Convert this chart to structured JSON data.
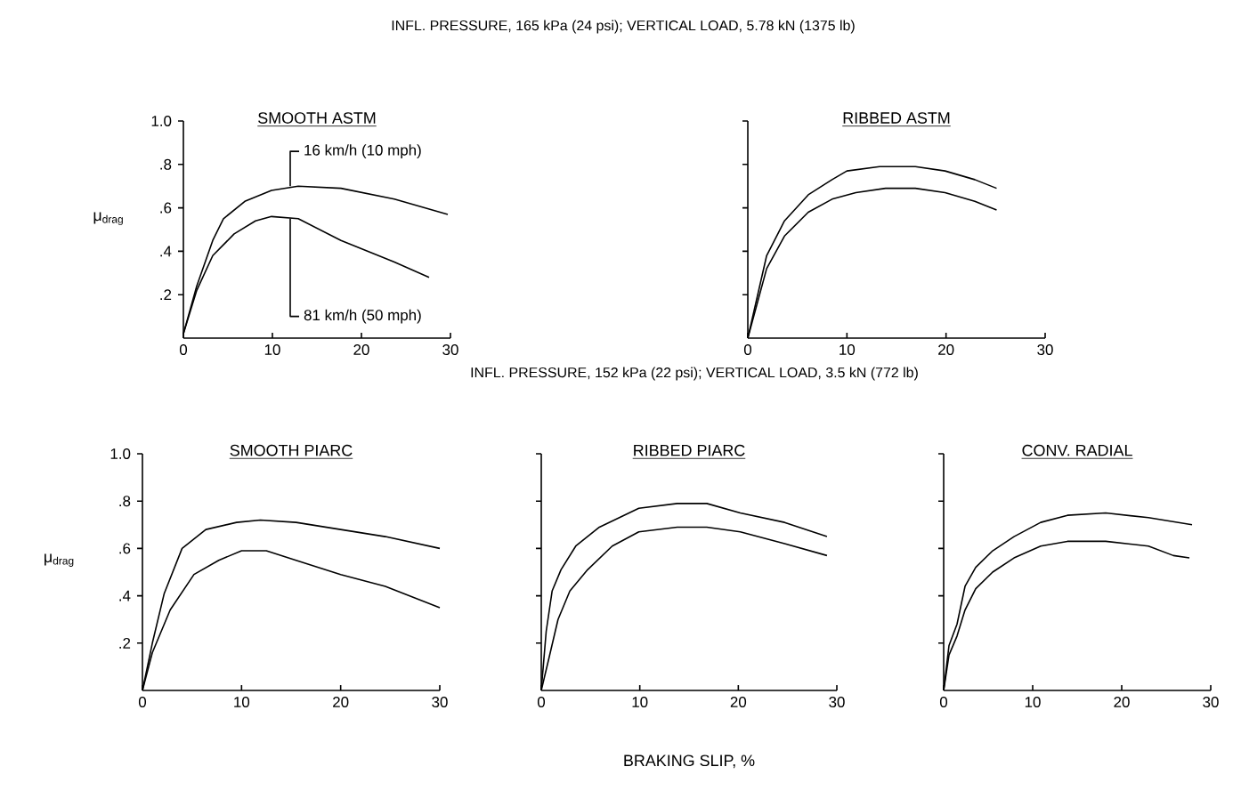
{
  "chart_data": [
    {
      "type": "line",
      "subtitle": "INFL. PRESSURE, 165 kPa (24 psi); VERTICAL LOAD, 5.78 kN (1375 lb)",
      "title": "SMOOTH ASTM",
      "ylabel": "μ$_{drag}$",
      "xlim": [
        0,
        30
      ],
      "ylim": [
        0,
        1.0
      ],
      "xticks": [
        0,
        10,
        20,
        30
      ],
      "yticks": [
        {
          "value": 0.2,
          "label": ".2"
        },
        {
          "value": 0.4,
          "label": ".4"
        },
        {
          "value": 0.6,
          "label": ".6"
        },
        {
          "value": 0.8,
          "label": ".8"
        },
        {
          "value": 1.0,
          "label": "1.0"
        }
      ],
      "series": [
        {
          "name": "16 km/h (10 mph)",
          "color": "#000000",
          "x": [
            0,
            1.5,
            3.3,
            4.5,
            6.9,
            9.9,
            12.9,
            17.7,
            23.7,
            29.7
          ],
          "values": [
            0.02,
            0.24,
            0.45,
            0.55,
            0.63,
            0.68,
            0.7,
            0.69,
            0.64,
            0.57
          ]
        },
        {
          "name": "81 km/h (50 mph)",
          "color": "#000000",
          "x": [
            0,
            1.5,
            3.3,
            5.7,
            8.1,
            9.9,
            12.9,
            17.7,
            23.7,
            27.6
          ],
          "values": [
            0.02,
            0.22,
            0.38,
            0.48,
            0.54,
            0.56,
            0.55,
            0.45,
            0.35,
            0.28
          ]
        }
      ]
    },
    {
      "type": "line",
      "title": "RIBBED ASTM",
      "xlim": [
        0,
        30
      ],
      "ylim": [
        0,
        1.0
      ],
      "xticks": [
        0,
        10,
        20,
        30
      ],
      "yticks": [
        {
          "value": 0.2,
          "label": null
        },
        {
          "value": 0.4,
          "label": null
        },
        {
          "value": 0.6,
          "label": null
        },
        {
          "value": 0.8,
          "label": null
        },
        {
          "value": 1.0,
          "label": null
        }
      ],
      "tick_labels": "x",
      "series": [
        {
          "color": "#000000",
          "x": [
            0,
            1.9,
            3.7,
            6.1,
            8.5,
            10,
            13.3,
            16.9,
            19.9,
            22.9,
            25.1
          ],
          "values": [
            0,
            0.38,
            0.54,
            0.66,
            0.73,
            0.77,
            0.79,
            0.79,
            0.77,
            0.73,
            0.69
          ]
        },
        {
          "color": "#000000",
          "x": [
            0,
            1.9,
            3.7,
            6.1,
            8.5,
            10.9,
            13.9,
            16.9,
            19.9,
            22.9,
            25.1
          ],
          "values": [
            0,
            0.32,
            0.47,
            0.58,
            0.64,
            0.67,
            0.69,
            0.69,
            0.67,
            0.63,
            0.59
          ]
        }
      ]
    },
    {
      "type": "line",
      "title": "SMOOTH PIARC",
      "ylabel": "μ$_{drag}$",
      "xlim": [
        0,
        30
      ],
      "ylim": [
        0,
        1.0
      ],
      "xticks": [
        0,
        10,
        20,
        30
      ],
      "yticks": [
        {
          "value": 0.2,
          "label": ".2"
        },
        {
          "value": 0.4,
          "label": ".4"
        },
        {
          "value": 0.6,
          "label": ".6"
        },
        {
          "value": 0.8,
          "label": ".8"
        },
        {
          "value": 1.0,
          "label": "1.0"
        }
      ],
      "series": [
        {
          "color": "#000000",
          "x": [
            0,
            1.0,
            2.2,
            4.0,
            6.4,
            9.5,
            11.9,
            15.5,
            20,
            24.5,
            30
          ],
          "values": [
            0,
            0.2,
            0.41,
            0.6,
            0.68,
            0.71,
            0.72,
            0.71,
            0.68,
            0.65,
            0.6
          ]
        },
        {
          "color": "#000000",
          "x": [
            0,
            1.0,
            2.8,
            5.2,
            7.7,
            10,
            12.5,
            15.5,
            20,
            24.5,
            30
          ],
          "values": [
            0,
            0.16,
            0.34,
            0.49,
            0.55,
            0.59,
            0.59,
            0.55,
            0.49,
            0.44,
            0.35
          ]
        }
      ]
    },
    {
      "type": "line",
      "subtitle": "INFL. PRESSURE, 152 kPa (22 psi); VERTICAL LOAD, 3.5 kN (772 lb)",
      "title": "RIBBED PIARC",
      "xlabel": "BRAKING SLIP, %",
      "xlim": [
        0,
        30
      ],
      "ylim": [
        0,
        1.0
      ],
      "xticks": [
        0,
        10,
        20,
        30
      ],
      "yticks": [
        {
          "value": 0.2,
          "label": null
        },
        {
          "value": 0.4,
          "label": null
        },
        {
          "value": 0.6,
          "label": null
        },
        {
          "value": 0.8,
          "label": null
        },
        {
          "value": 1.0,
          "label": null
        }
      ],
      "tick_labels": "x",
      "series": [
        {
          "color": "#000000",
          "x": [
            0,
            0.5,
            1.1,
            2.0,
            3.5,
            5.9,
            9.9,
            13.8,
            16.8,
            20.2,
            24.7,
            29
          ],
          "values": [
            0,
            0.25,
            0.42,
            0.51,
            0.61,
            0.69,
            0.77,
            0.79,
            0.79,
            0.75,
            0.71,
            0.65
          ]
        },
        {
          "color": "#000000",
          "x": [
            0,
            0.8,
            1.7,
            2.9,
            4.7,
            7.2,
            9.9,
            13.8,
            16.8,
            20.2,
            24.7,
            29
          ],
          "values": [
            0,
            0.14,
            0.3,
            0.42,
            0.51,
            0.61,
            0.67,
            0.69,
            0.69,
            0.67,
            0.62,
            0.57
          ]
        }
      ]
    },
    {
      "type": "line",
      "title": "CONV. RADIAL",
      "xlim": [
        0,
        30
      ],
      "ylim": [
        0,
        1.0
      ],
      "xticks": [
        0,
        10,
        20,
        30
      ],
      "yticks": [
        {
          "value": 0.2,
          "label": null
        },
        {
          "value": 0.4,
          "label": null
        },
        {
          "value": 0.6,
          "label": null
        },
        {
          "value": 0.8,
          "label": null
        },
        {
          "value": 1.0,
          "label": null
        }
      ],
      "tick_labels": "x",
      "series": [
        {
          "color": "#000000",
          "x": [
            0,
            0.6,
            1.5,
            2.4,
            3.6,
            5.5,
            7.9,
            10.9,
            13.9,
            18.2,
            23,
            27.9
          ],
          "values": [
            0,
            0.19,
            0.28,
            0.44,
            0.52,
            0.59,
            0.65,
            0.71,
            0.74,
            0.75,
            0.73,
            0.7
          ]
        },
        {
          "color": "#000000",
          "x": [
            0,
            0.6,
            1.5,
            2.4,
            3.6,
            5.5,
            7.9,
            10.9,
            13.9,
            18.2,
            23,
            25.8,
            27.6
          ],
          "values": [
            0,
            0.15,
            0.23,
            0.34,
            0.43,
            0.5,
            0.56,
            0.61,
            0.63,
            0.63,
            0.61,
            0.57,
            0.56
          ]
        }
      ]
    }
  ]
}
